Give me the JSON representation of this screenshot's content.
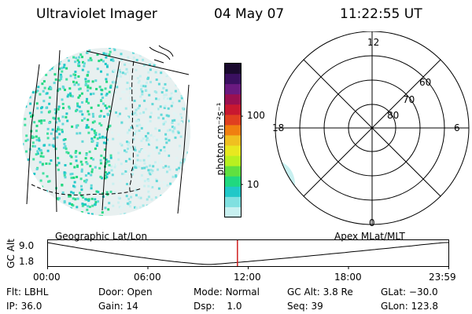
{
  "header": {
    "instrument": "Ultraviolet Imager",
    "date": "04 May 07",
    "time": "11:22:55 UT"
  },
  "colorbar": {
    "label": "photon cm⁻²s⁻¹",
    "ticks": [
      "100",
      "10"
    ],
    "colors": [
      "#1a0a2e",
      "#3a1060",
      "#6a1a80",
      "#9a1050",
      "#c81830",
      "#e04020",
      "#f08010",
      "#f0c020",
      "#e8e820",
      "#b8f020",
      "#60e040",
      "#20d880",
      "#20c8c8",
      "#80e0e0",
      "#c8f0f0"
    ]
  },
  "polar_plot": {
    "mlt_labels": {
      "top": "12",
      "left": "18",
      "right": "6",
      "bottom": "0"
    },
    "lat_labels": [
      "80",
      "70",
      "60"
    ]
  },
  "timeline": {
    "left_label": "Geographic Lat/Lon",
    "right_label": "Apex  MLat/MLT",
    "axis_title": "GC Alt",
    "y_ticks": [
      "9.0",
      "1.8"
    ],
    "x_ticks": [
      "00:00",
      "06:00",
      "12:00",
      "18:00",
      "23:59"
    ],
    "current_time_hours": 11.38,
    "marker_color": "#d02020"
  },
  "footer": {
    "row1": [
      {
        "label": "Flt:",
        "value": "LBHL"
      },
      {
        "label": "Door:",
        "value": "Open"
      },
      {
        "label": "Mode:",
        "value": "Normal"
      },
      {
        "label": "GC Alt:",
        "value": "3.8 Re"
      },
      {
        "label": "GLat:",
        "value": "−30.0"
      }
    ],
    "row2": [
      {
        "label": "IP:",
        "value": "36.0"
      },
      {
        "label": "Gain:",
        "value": "14"
      },
      {
        "label": "Dsp:",
        "value": "1.0"
      },
      {
        "label": "Seq:",
        "value": "39"
      },
      {
        "label": "GLon:",
        "value": "123.8"
      }
    ]
  }
}
